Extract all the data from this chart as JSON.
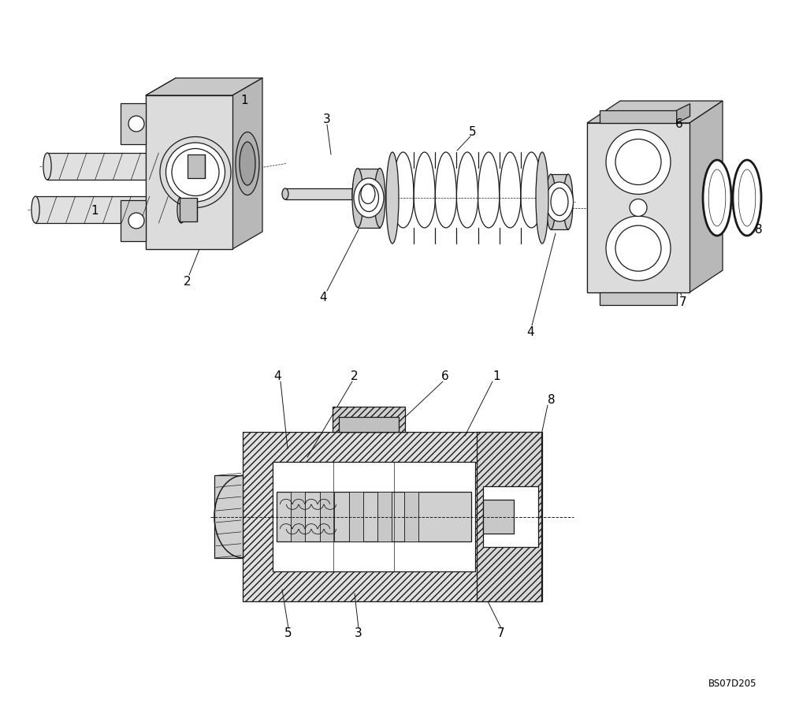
{
  "bg_color": "#ffffff",
  "line_color": "#1a1a1a",
  "fig_width": 10.0,
  "fig_height": 9.12,
  "dpi": 100,
  "watermark": "BS07D205"
}
